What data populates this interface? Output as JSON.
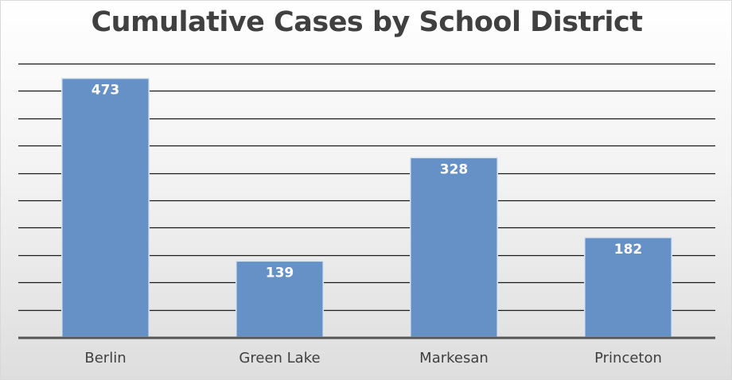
{
  "chart_data": {
    "type": "bar",
    "title": "Cumulative Cases by School District",
    "categories": [
      "Berlin",
      "Green Lake",
      "Markesan",
      "Princeton"
    ],
    "values": [
      473,
      139,
      328,
      182
    ],
    "data_labels": [
      "473",
      "139",
      "328",
      "182"
    ],
    "xlabel": "",
    "ylabel": "",
    "ylim": [
      0,
      500
    ],
    "gridlines": true,
    "legend": "none",
    "bar_color": "#6591c6",
    "bar_border_color": "#dbe5f2",
    "grid_color": "#1a1a1a",
    "axis_color": "#555555",
    "label_color": "#ffffff",
    "tick_label_color": "#404040"
  }
}
